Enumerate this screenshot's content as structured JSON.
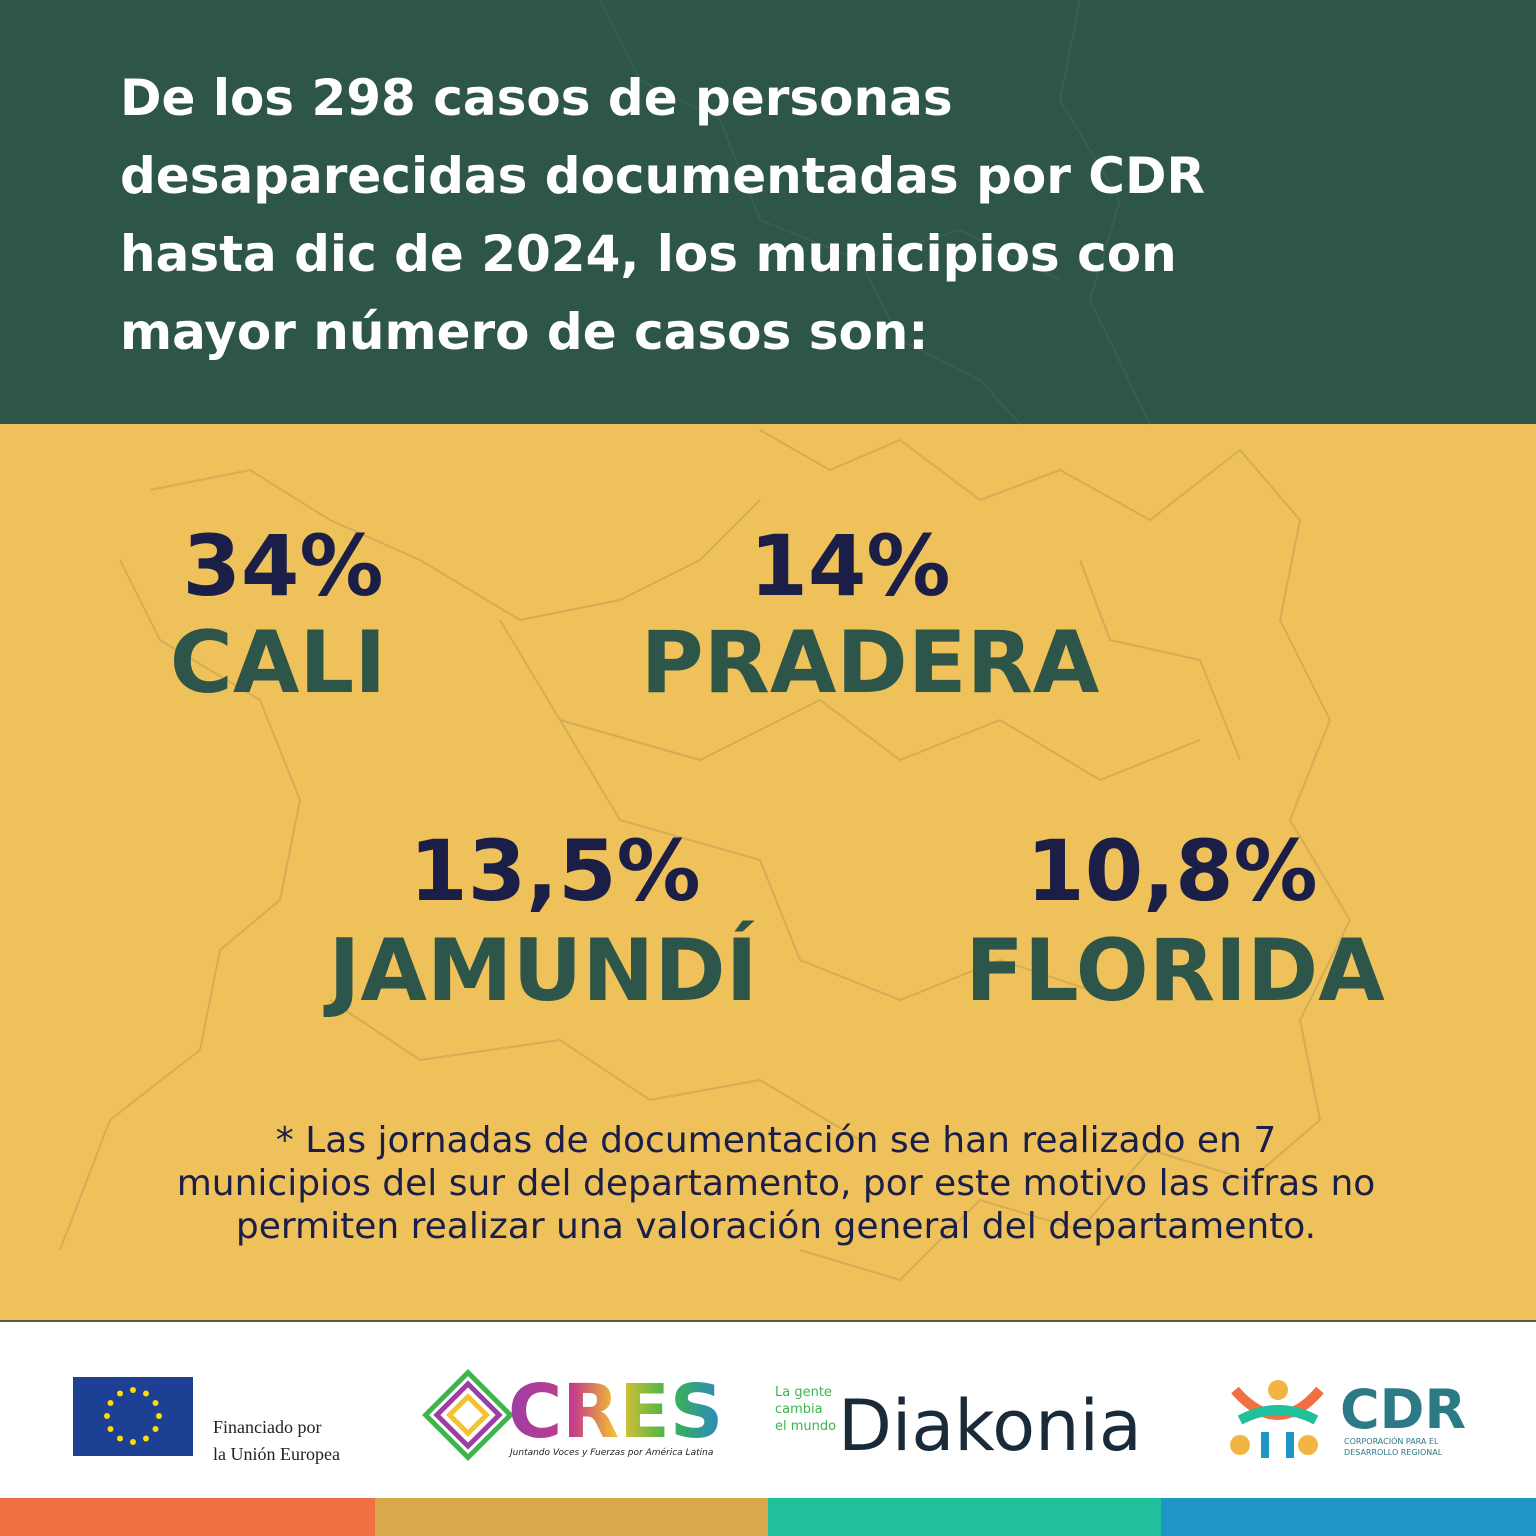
{
  "header": {
    "title_lines": [
      "De los 298 casos de personas",
      "desaparecidas documentadas por CDR",
      "hasta  dic de 2024, los municipios con",
      "mayor número de casos son:"
    ]
  },
  "stats": [
    {
      "percent": "34%",
      "municipality": "CALI"
    },
    {
      "percent": "14%",
      "municipality": "PRADERA"
    },
    {
      "percent": "13,5%",
      "municipality": "JAMUNDÍ"
    },
    {
      "percent": "10,8%",
      "municipality": "FLORIDA"
    }
  ],
  "note": {
    "lines": [
      "* Las jornadas de documentación se han realizado en  7",
      "municipios del sur del departamento, por este motivo las cifras no",
      "permiten realizar una valoración general del departamento."
    ]
  },
  "footer": {
    "eu": {
      "lines": [
        "Financiado por",
        "la Unión Europea"
      ]
    },
    "cres": {
      "name": "CRES",
      "tagline": "Juntando Voces y Fuerzas por América Latina"
    },
    "diakonia": {
      "slogan": [
        "La gente",
        "cambia",
        "el mundo"
      ],
      "name": "Diakonia"
    },
    "cdr": {
      "name": "CDR",
      "subtitle": [
        "CORPORACIÓN PARA EL",
        "DESARROLLO REGIONAL"
      ]
    }
  }
}
